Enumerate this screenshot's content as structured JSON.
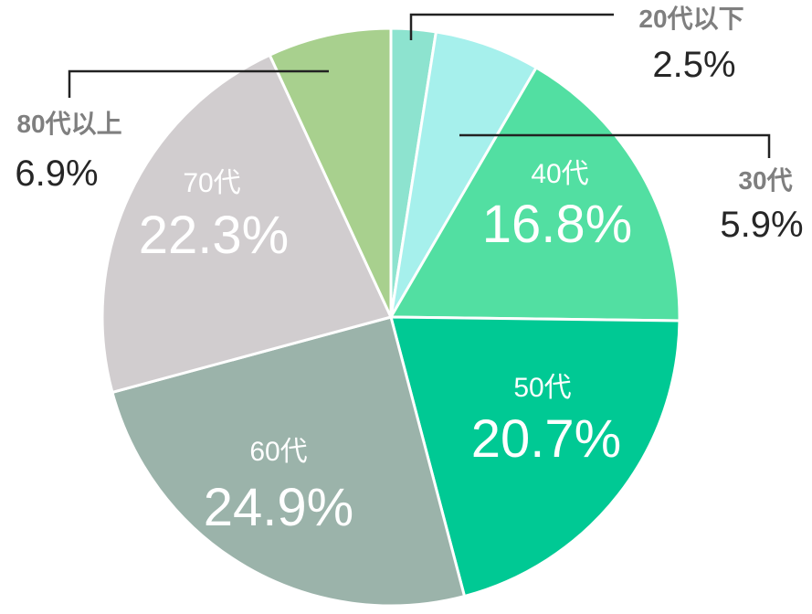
{
  "chart_data": {
    "type": "pie",
    "title": "",
    "start_angle_deg": 0,
    "direction": "clockwise",
    "slices": [
      {
        "label": "20代以下",
        "value": 2.5,
        "display": "2.5%",
        "color": "#8de3cf",
        "label_placement": "outside"
      },
      {
        "label": "30代",
        "value": 5.9,
        "display": "5.9%",
        "color": "#a6f0ec",
        "label_placement": "outside"
      },
      {
        "label": "40代",
        "value": 16.8,
        "display": "16.8%",
        "color": "#52dfa2",
        "label_placement": "inside"
      },
      {
        "label": "50代",
        "value": 20.7,
        "display": "20.7%",
        "color": "#00c994",
        "label_placement": "inside"
      },
      {
        "label": "60代",
        "value": 24.9,
        "display": "24.9%",
        "color": "#9bb3aa",
        "label_placement": "inside"
      },
      {
        "label": "70代",
        "value": 22.3,
        "display": "22.3%",
        "color": "#d1cdcf",
        "label_placement": "inside"
      },
      {
        "label": "80代以上",
        "value": 6.9,
        "display": "6.9%",
        "color": "#a8d08e",
        "label_placement": "outside"
      }
    ]
  }
}
